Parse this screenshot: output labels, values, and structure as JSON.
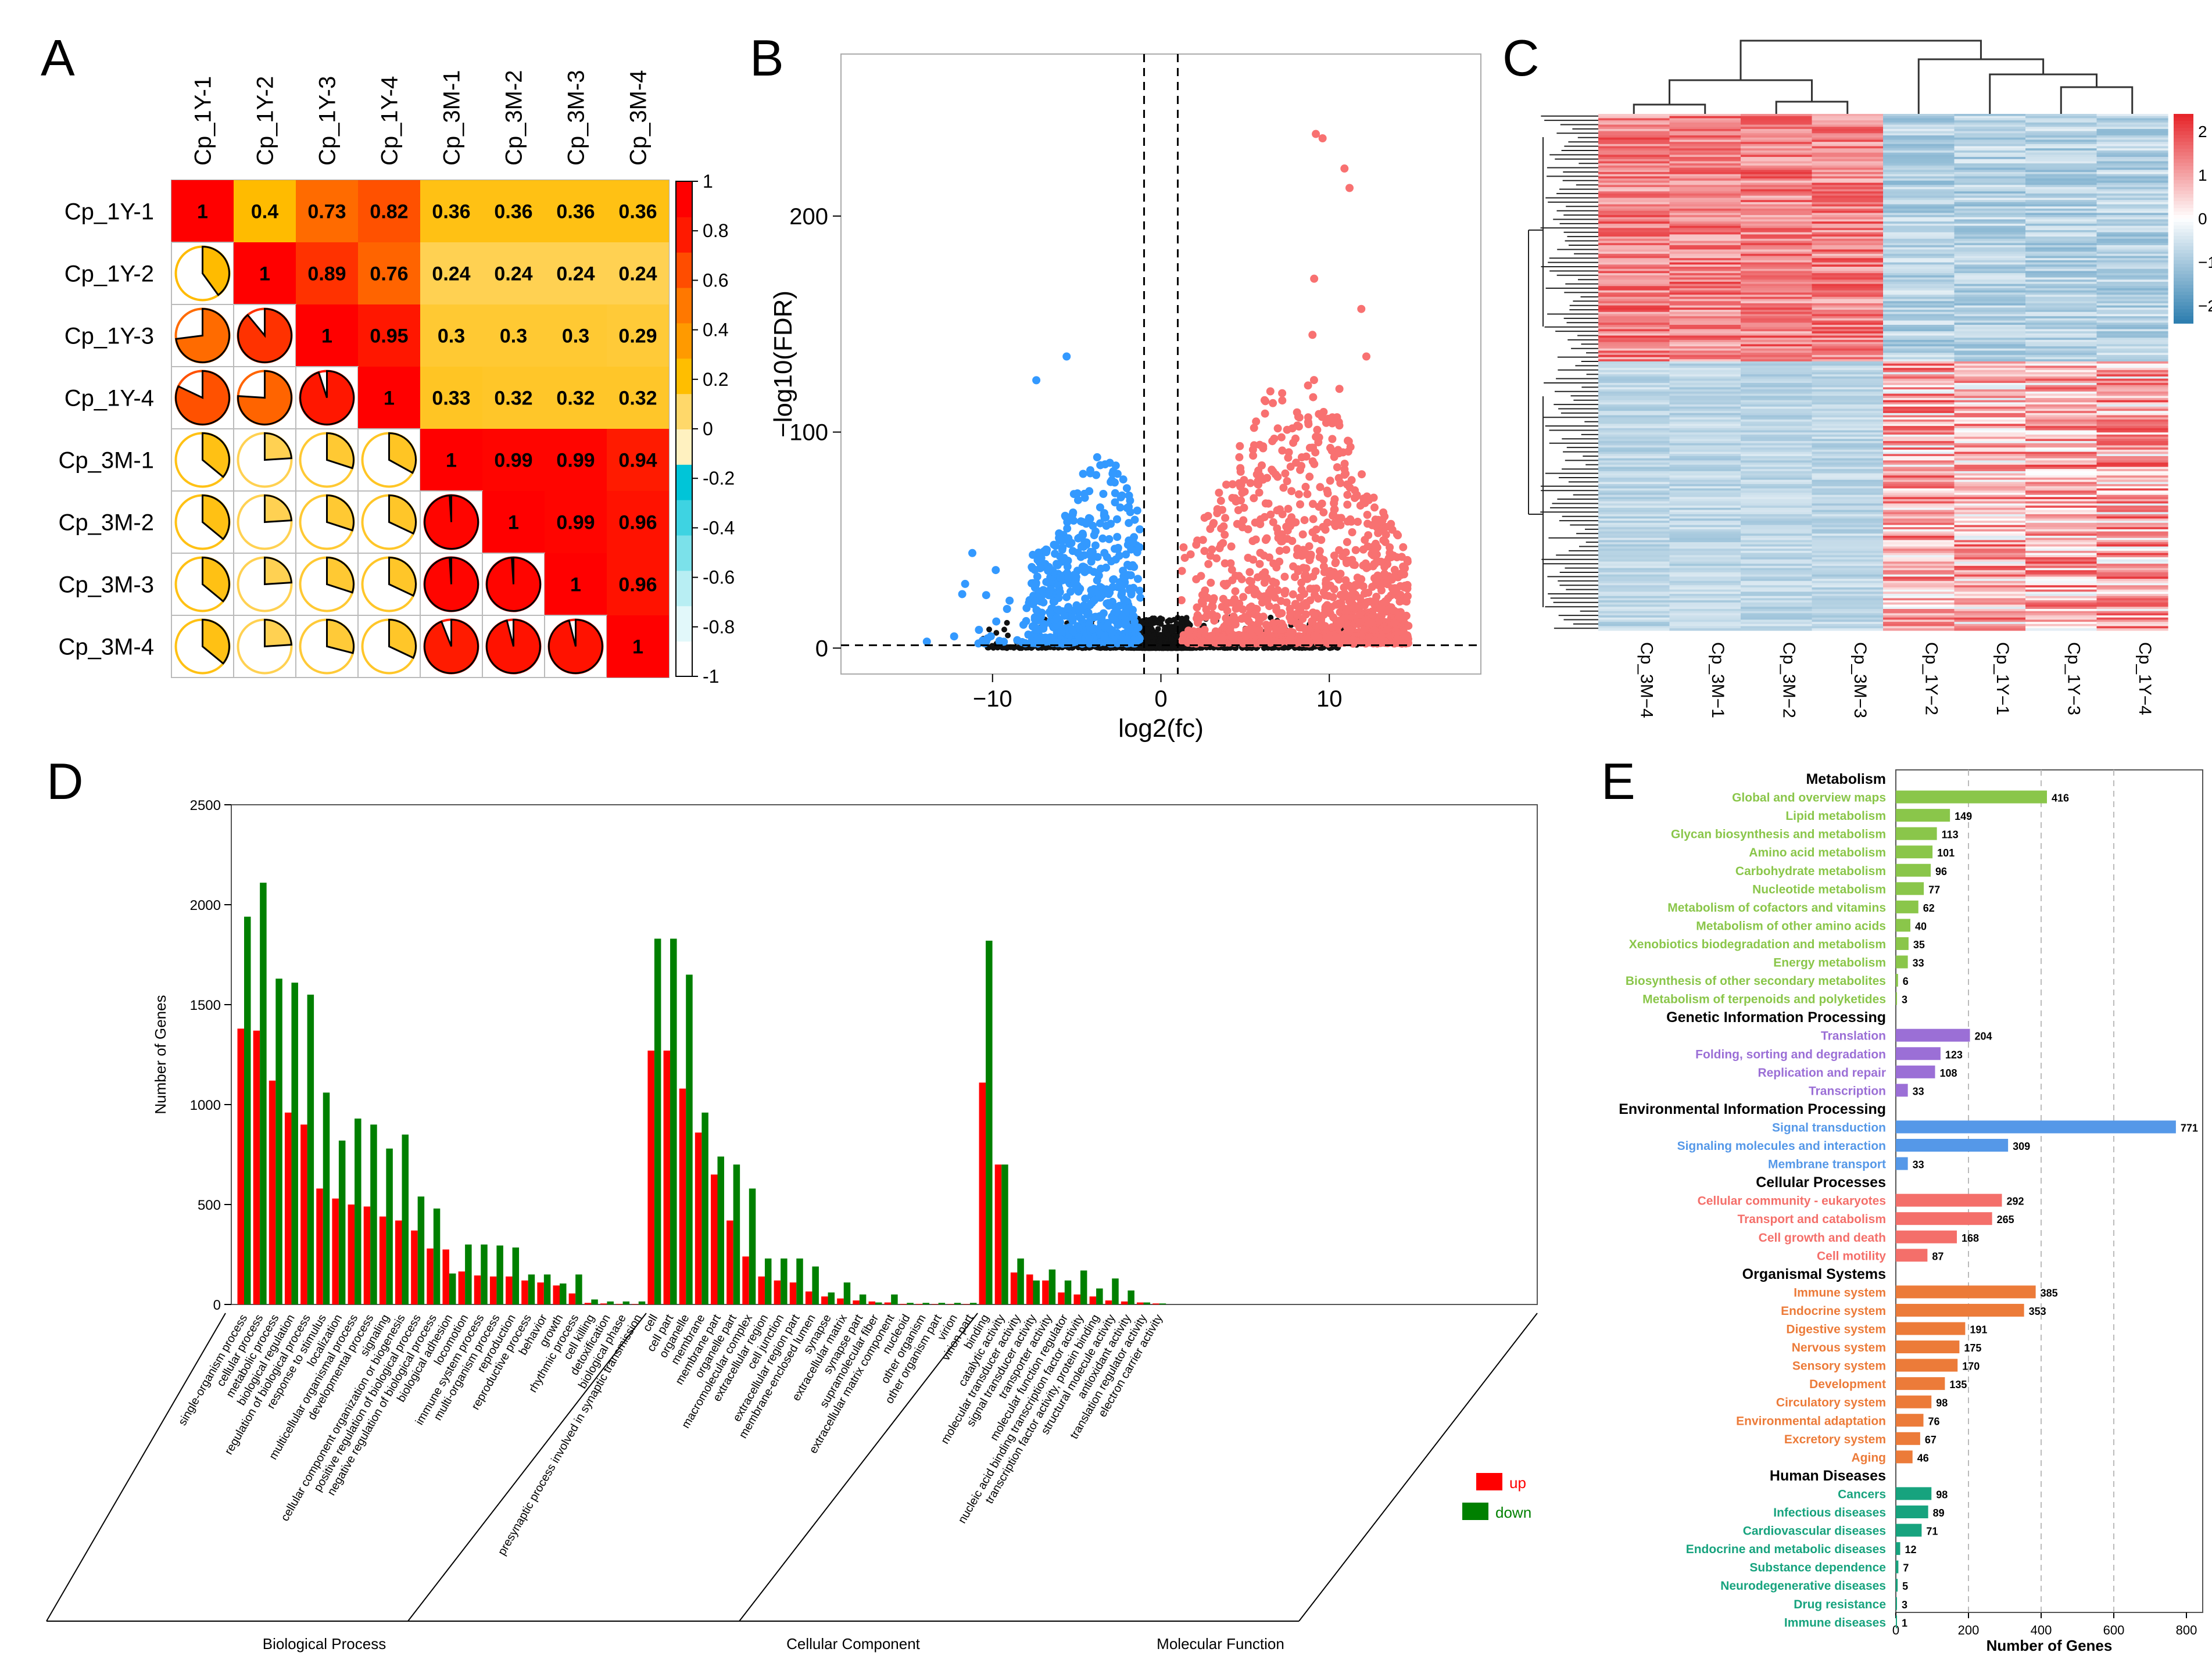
{
  "panel_letters": {
    "a": "A",
    "b": "B",
    "c": "C",
    "d": "D",
    "e": "E"
  },
  "colors": {
    "up_red": "#ff0000",
    "down_green": "#008000",
    "volcano_blue": "#3399ff",
    "volcano_red": "#f87171",
    "heat_high": "#e6262b",
    "heat_low": "#2f7fb0",
    "kegg_metabolism": "#8ac64a",
    "kegg_genetic": "#9b6fd6",
    "kegg_environment": "#5598e8",
    "kegg_cellular": "#f46f6a",
    "kegg_organismal": "#ec7b39",
    "kegg_human": "#17a37e"
  },
  "chart_data": [
    {
      "panel": "A",
      "type": "heatmap",
      "samples": [
        "Cp_1Y-1",
        "Cp_1Y-2",
        "Cp_1Y-3",
        "Cp_1Y-4",
        "Cp_3M-1",
        "Cp_3M-2",
        "Cp_3M-3",
        "Cp_3M-4"
      ],
      "matrix": [
        [
          1,
          0.4,
          0.73,
          0.82,
          0.36,
          0.36,
          0.36,
          0.36
        ],
        [
          0.4,
          1,
          0.89,
          0.76,
          0.24,
          0.24,
          0.24,
          0.24
        ],
        [
          0.73,
          0.89,
          1,
          0.95,
          0.3,
          0.3,
          0.3,
          0.29
        ],
        [
          0.82,
          0.76,
          0.95,
          1,
          0.33,
          0.32,
          0.32,
          0.32
        ],
        [
          0.36,
          0.24,
          0.3,
          0.33,
          1,
          0.99,
          0.99,
          0.94
        ],
        [
          0.36,
          0.24,
          0.3,
          0.32,
          0.99,
          1,
          0.99,
          0.96
        ],
        [
          0.36,
          0.24,
          0.3,
          0.32,
          0.99,
          0.99,
          1,
          0.96
        ],
        [
          0.36,
          0.24,
          0.29,
          0.32,
          0.94,
          0.96,
          0.96,
          1
        ]
      ],
      "upper_labels": [
        [
          "1",
          "0.4",
          "0.73",
          "0.82",
          "0.36",
          "0.36",
          "0.36",
          "0.36"
        ],
        [
          "",
          "1",
          "0.89",
          "0.76",
          "0.24",
          "0.24",
          "0.24",
          "0.24"
        ],
        [
          "",
          "",
          "1",
          "0.95",
          "0.3",
          "0.3",
          "0.3",
          "0.29"
        ],
        [
          "",
          "",
          "",
          "1",
          "0.33",
          "0.32",
          "0.32",
          "0.32"
        ],
        [
          "",
          "",
          "",
          "",
          "1",
          "0.99",
          "0.99",
          "0.94"
        ],
        [
          "",
          "",
          "",
          "",
          "",
          "1",
          "0.99",
          "0.96"
        ],
        [
          "",
          "",
          "",
          "",
          "",
          "",
          "1",
          "0.96"
        ],
        [
          "",
          "",
          "",
          "",
          "",
          "",
          "",
          "1"
        ]
      ],
      "colorbar_ticks": [
        "1",
        "0.8",
        "0.6",
        "0.4",
        "0.2",
        "0",
        "-0.2",
        "-0.4",
        "-0.6",
        "-0.8",
        "-1"
      ],
      "colorbar_range": [
        -1,
        1
      ]
    },
    {
      "panel": "B",
      "type": "scatter",
      "xlabel": "log2(fc)",
      "ylabel": "-log10(FDR)",
      "xlim": [
        -19,
        19
      ],
      "ylim": [
        -12,
        275
      ],
      "xticks": [
        "-10",
        "0",
        "10"
      ],
      "yticks": [
        "0",
        "100",
        "200"
      ],
      "fc_thresholds": [
        -1,
        1
      ],
      "fdr_threshold": 1.3,
      "highlight_up": [
        [
          9.2,
          238
        ],
        [
          9.6,
          236
        ],
        [
          10.9,
          222
        ],
        [
          11.2,
          213
        ],
        [
          9.1,
          171
        ],
        [
          11.9,
          157
        ],
        [
          9.0,
          145
        ],
        [
          12.2,
          135
        ],
        [
          10.6,
          120
        ],
        [
          7.2,
          118
        ],
        [
          10.3,
          105
        ],
        [
          11.1,
          96
        ]
      ],
      "highlight_down": [
        [
          -5.6,
          135
        ],
        [
          -7.4,
          124
        ],
        [
          -11.2,
          44
        ],
        [
          -13.9,
          3
        ],
        [
          -11.8,
          25
        ]
      ]
    },
    {
      "panel": "C",
      "type": "heatmap",
      "columns": [
        "Cp_3M-4",
        "Cp_3M-1",
        "Cp_3M-2",
        "Cp_3M-3",
        "Cp_1Y-2",
        "Cp_1Y-1",
        "Cp_1Y-3",
        "Cp_1Y-4"
      ],
      "colorbar_ticks": [
        "2",
        "1",
        "0",
        "−1",
        "−2"
      ],
      "range": [
        -2.4,
        2.4
      ]
    },
    {
      "panel": "D",
      "type": "bar",
      "ylabel": "Number of Genes",
      "ylim": [
        0,
        2500
      ],
      "yticks": [
        "0",
        "500",
        "1000",
        "1500",
        "2000",
        "2500"
      ],
      "legend": [
        "up",
        "down"
      ],
      "groups": [
        {
          "name": "Biological Process",
          "categories": [
            "single-organism process",
            "cellular process",
            "metabolic process",
            "biological regulation",
            "regulation of biological process",
            "response to stimulus",
            "localization",
            "multicellular organismal process",
            "developmental process",
            "signaling",
            "cellular component organization or biogenesis",
            "positive regulation of biological process",
            "negative regulation of biological process",
            "biological adhesion",
            "locomotion",
            "immune system process",
            "multi-organism process",
            "reproduction",
            "reproductive process",
            "behavior",
            "growth",
            "rhythmic process",
            "cell killing",
            "detoxification",
            "biological phase",
            "presynaptic process involved in synaptic transmission"
          ],
          "up": [
            1380,
            1370,
            1120,
            960,
            900,
            580,
            530,
            500,
            490,
            440,
            420,
            370,
            280,
            275,
            165,
            145,
            140,
            140,
            120,
            110,
            95,
            55,
            8,
            5,
            3,
            2
          ],
          "down": [
            1940,
            2110,
            1630,
            1610,
            1550,
            1060,
            820,
            930,
            900,
            780,
            850,
            540,
            480,
            155,
            300,
            300,
            295,
            285,
            150,
            150,
            105,
            150,
            25,
            15,
            15,
            15
          ]
        },
        {
          "name": "Cellular Component",
          "categories": [
            "cell",
            "cell part",
            "organelle",
            "membrane",
            "membrane part",
            "organelle part",
            "macromolecular complex",
            "extracellular region",
            "cell junction",
            "extracellular region part",
            "membrane-enclosed lumen",
            "synapse",
            "extracellular matrix",
            "synapse part",
            "supramolecular fiber",
            "extracellular matrix component",
            "nucleoid",
            "other organism",
            "other organism part",
            "virion",
            "virion part"
          ],
          "up": [
            1270,
            1270,
            1080,
            860,
            650,
            420,
            240,
            140,
            120,
            110,
            65,
            40,
            30,
            20,
            15,
            10,
            3,
            3,
            2,
            2,
            2
          ],
          "down": [
            1830,
            1830,
            1650,
            960,
            740,
            700,
            580,
            230,
            230,
            230,
            190,
            60,
            110,
            50,
            10,
            50,
            8,
            8,
            8,
            8,
            8
          ]
        },
        {
          "name": "Molecular Function",
          "categories": [
            "binding",
            "catalytic activity",
            "molecular transducer activity",
            "signal transducer activity",
            "transporter activity",
            "molecular function regulator",
            "nucleic acid binding transcription factor activity",
            "transcription factor activity, protein binding",
            "structural molecule activity",
            "antioxidant activity",
            "translation regulator activity",
            "electron carrier activity"
          ],
          "up": [
            1110,
            700,
            160,
            150,
            120,
            60,
            50,
            40,
            20,
            15,
            10,
            5
          ],
          "down": [
            1820,
            700,
            230,
            120,
            175,
            120,
            170,
            80,
            130,
            70,
            10,
            5
          ]
        }
      ]
    },
    {
      "panel": "E",
      "type": "bar",
      "xlabel": "Number of Genes",
      "xlim": [
        0,
        800
      ],
      "xticks": [
        "0",
        "200",
        "400",
        "600",
        "800"
      ],
      "groups": [
        {
          "name": "Metabolism",
          "color": "#8ac64a",
          "items": [
            [
              "Global and overview maps",
              416
            ],
            [
              "Lipid metabolism",
              149
            ],
            [
              "Glycan biosynthesis and metabolism",
              113
            ],
            [
              "Amino acid metabolism",
              101
            ],
            [
              "Carbohydrate metabolism",
              96
            ],
            [
              "Nucleotide metabolism",
              77
            ],
            [
              "Metabolism of cofactors and vitamins",
              62
            ],
            [
              "Metabolism of other amino acids",
              40
            ],
            [
              "Xenobiotics biodegradation and metabolism",
              35
            ],
            [
              "Energy metabolism",
              33
            ],
            [
              "Biosynthesis of other secondary metabolites",
              6
            ],
            [
              "Metabolism of terpenoids and polyketides",
              3
            ]
          ]
        },
        {
          "name": "Genetic Information Processing",
          "color": "#9b6fd6",
          "items": [
            [
              "Translation",
              204
            ],
            [
              "Folding, sorting and degradation",
              123
            ],
            [
              "Replication and repair",
              108
            ],
            [
              "Transcription",
              33
            ]
          ]
        },
        {
          "name": "Environmental Information Processing",
          "color": "#5598e8",
          "items": [
            [
              "Signal transduction",
              771
            ],
            [
              "Signaling molecules and interaction",
              309
            ],
            [
              "Membrane transport",
              33
            ]
          ]
        },
        {
          "name": "Cellular Processes",
          "color": "#f46f6a",
          "items": [
            [
              "Cellular community - eukaryotes",
              292
            ],
            [
              "Transport and catabolism",
              265
            ],
            [
              "Cell growth and death",
              168
            ],
            [
              "Cell motility",
              87
            ]
          ]
        },
        {
          "name": "Organismal Systems",
          "color": "#ec7b39",
          "items": [
            [
              "Immune system",
              385
            ],
            [
              "Endocrine system",
              353
            ],
            [
              "Digestive system",
              191
            ],
            [
              "Nervous system",
              175
            ],
            [
              "Sensory system",
              170
            ],
            [
              "Development",
              135
            ],
            [
              "Circulatory system",
              98
            ],
            [
              "Environmental adaptation",
              76
            ],
            [
              "Excretory system",
              67
            ],
            [
              "Aging",
              46
            ]
          ]
        },
        {
          "name": "Human Diseases",
          "color": "#17a37e",
          "items": [
            [
              "Cancers",
              98
            ],
            [
              "Infectious diseases",
              89
            ],
            [
              "Cardiovascular diseases",
              71
            ],
            [
              "Endocrine and metabolic diseases",
              12
            ],
            [
              "Substance dependence",
              7
            ],
            [
              "Neurodegenerative diseases",
              5
            ],
            [
              "Drug resistance",
              3
            ],
            [
              "Immune diseases",
              1
            ]
          ]
        }
      ]
    }
  ]
}
